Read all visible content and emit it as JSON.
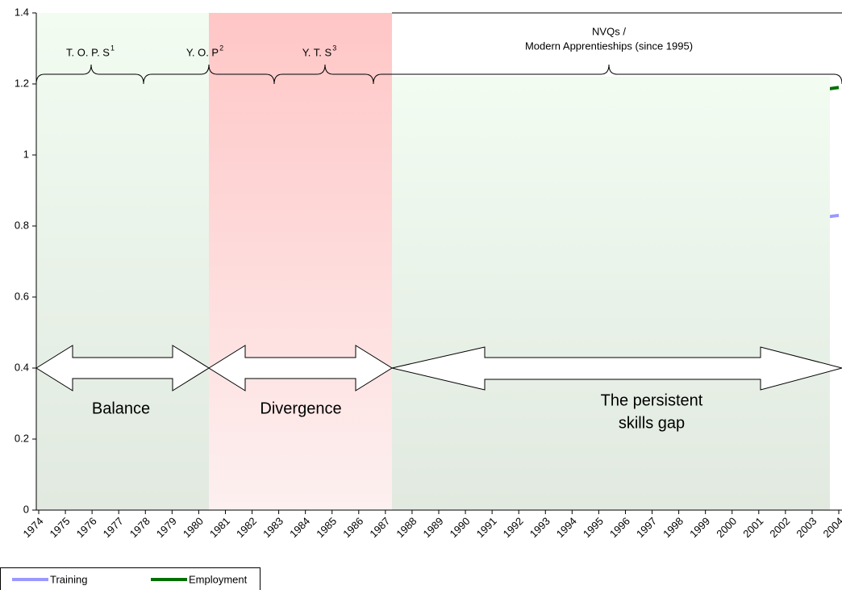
{
  "chart_data": {
    "type": "line",
    "categories": [
      "1974",
      "1975",
      "1976",
      "1977",
      "1978",
      "1979",
      "1980",
      "1981",
      "1982",
      "1983",
      "1984",
      "1985",
      "1986",
      "1987",
      "1988",
      "1989",
      "1990",
      "1991",
      "1992",
      "1993",
      "1994",
      "1995",
      "1996",
      "1997",
      "1998",
      "1999",
      "2000",
      "2001",
      "2002",
      "2003",
      "2004"
    ],
    "series": [
      {
        "name": "Training",
        "color": "#9999ff",
        "values": [
          null,
          null,
          null,
          null,
          null,
          null,
          null,
          null,
          null,
          null,
          null,
          null,
          null,
          null,
          null,
          null,
          null,
          null,
          null,
          null,
          null,
          null,
          null,
          null,
          null,
          null,
          null,
          null,
          null,
          0.82,
          0.83
        ]
      },
      {
        "name": "Employment",
        "color": "#007000",
        "values": [
          null,
          null,
          null,
          null,
          null,
          null,
          null,
          null,
          null,
          null,
          null,
          null,
          null,
          null,
          null,
          null,
          null,
          null,
          null,
          null,
          null,
          null,
          null,
          null,
          null,
          null,
          null,
          null,
          null,
          1.18,
          1.19
        ]
      }
    ],
    "ylim": [
      0,
      1.4
    ],
    "yticks": [
      0,
      0.2,
      0.4,
      0.6,
      0.8,
      1,
      1.2,
      1.4
    ],
    "schemes": [
      {
        "label": "T. O. P. S",
        "note": "1"
      },
      {
        "label": "Y. O. P",
        "note": "2"
      },
      {
        "label": "Y. T. S",
        "note": "3"
      },
      {
        "label": [
          "NVQs /",
          "Modern Apprentieships (since 1995)"
        ]
      }
    ],
    "phases": [
      [
        "Balance"
      ],
      [
        "Divergence"
      ],
      [
        "The persistent",
        "skills gap"
      ]
    ]
  }
}
